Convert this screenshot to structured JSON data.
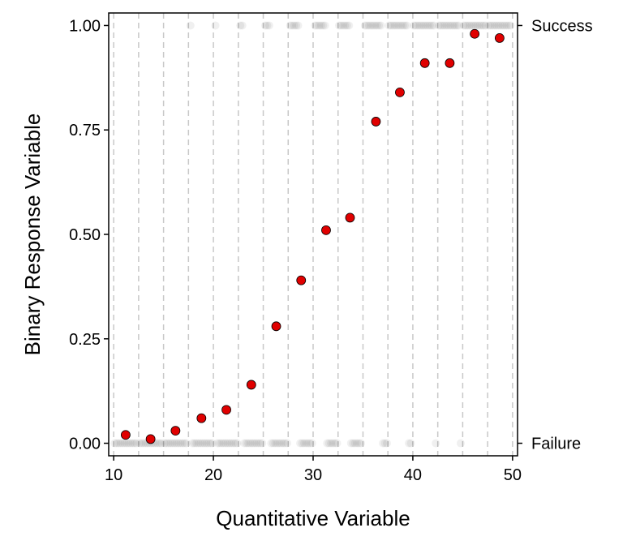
{
  "chart_data": {
    "type": "scatter",
    "xlabel": "Quantitative Variable",
    "ylabel": "Binary Response Variable",
    "xlim": [
      9.5,
      50.5
    ],
    "ylim": [
      -0.03,
      1.03
    ],
    "x_ticks": [
      10,
      20,
      30,
      40,
      50
    ],
    "x_tick_labels": [
      "10",
      "20",
      "30",
      "40",
      "50"
    ],
    "y_ticks": [
      0,
      0.25,
      0.5,
      0.75,
      1
    ],
    "y_tick_labels": [
      "0.00",
      "0.25",
      "0.50",
      "0.75",
      "1.00"
    ],
    "right_axis_labels": [
      {
        "y": 1,
        "label": "Success"
      },
      {
        "y": 0,
        "label": "Failure"
      }
    ],
    "bin_boundaries": [
      10,
      12.5,
      15,
      17.5,
      20,
      22.5,
      25,
      27.5,
      30,
      32.5,
      35,
      37.5,
      40,
      42.5,
      45,
      47.5,
      50
    ],
    "grid": false,
    "series": [
      {
        "color": "#e00000",
        "x": [
          11.2,
          13.7,
          16.2,
          18.8,
          21.3,
          23.8,
          26.3,
          28.8,
          31.3,
          33.7,
          36.3,
          38.7,
          41.2,
          43.7,
          46.2,
          48.7
        ],
        "y": [
          0.02,
          0.01,
          0.03,
          0.06,
          0.08,
          0.14,
          0.28,
          0.39,
          0.51,
          0.54,
          0.77,
          0.84,
          0.91,
          0.91,
          0.98,
          0.97
        ]
      }
    ],
    "raw_points_color": "#000000",
    "raw_points_opacity": 0.06
  }
}
